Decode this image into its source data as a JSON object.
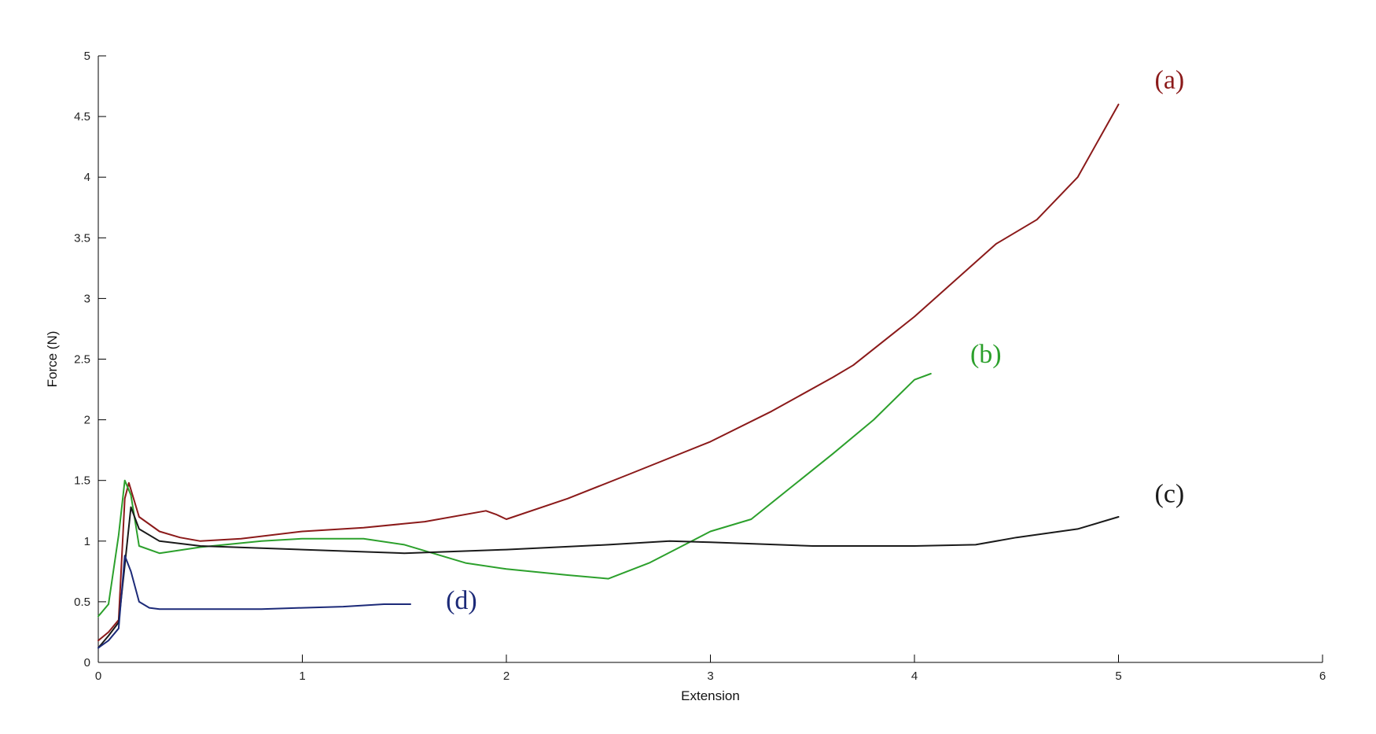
{
  "chart_data": {
    "type": "line",
    "title": "",
    "xlabel": "Extension",
    "ylabel": "Force (N)",
    "xlim": [
      0,
      6
    ],
    "ylim": [
      0,
      5
    ],
    "xticks": [
      "0",
      "1",
      "2",
      "3",
      "4",
      "5",
      "6"
    ],
    "yticks": [
      "0",
      "0.5",
      "1",
      "1.5",
      "2",
      "2.5",
      "3",
      "3.5",
      "4",
      "4.5",
      "5"
    ],
    "grid": false,
    "legend": "none",
    "series": [
      {
        "name": "(a)",
        "color": "#8b1a1a",
        "x": [
          0,
          0.05,
          0.1,
          0.13,
          0.15,
          0.2,
          0.3,
          0.4,
          0.5,
          0.7,
          1.0,
          1.3,
          1.6,
          1.9,
          1.95,
          2.0,
          2.3,
          2.6,
          3.0,
          3.3,
          3.6,
          3.7,
          4.0,
          4.2,
          4.4,
          4.6,
          4.8,
          5.0
        ],
        "y": [
          0.18,
          0.25,
          0.35,
          1.35,
          1.48,
          1.2,
          1.08,
          1.03,
          1.0,
          1.02,
          1.08,
          1.11,
          1.16,
          1.25,
          1.22,
          1.18,
          1.35,
          1.55,
          1.82,
          2.07,
          2.35,
          2.45,
          2.85,
          3.15,
          3.45,
          3.65,
          4.0,
          4.6
        ]
      },
      {
        "name": "(b)",
        "color": "#2ca02c",
        "x": [
          0,
          0.05,
          0.1,
          0.13,
          0.16,
          0.2,
          0.3,
          0.5,
          0.8,
          1.0,
          1.3,
          1.5,
          1.8,
          2.0,
          2.3,
          2.5,
          2.7,
          3.0,
          3.2,
          3.4,
          3.6,
          3.8,
          4.0,
          4.08
        ],
        "y": [
          0.38,
          0.48,
          1.05,
          1.5,
          1.38,
          0.96,
          0.9,
          0.95,
          1.0,
          1.02,
          1.02,
          0.97,
          0.82,
          0.77,
          0.72,
          0.69,
          0.82,
          1.08,
          1.18,
          1.45,
          1.72,
          2.0,
          2.33,
          2.38
        ]
      },
      {
        "name": "(c)",
        "color": "#1a1a1a",
        "x": [
          0,
          0.05,
          0.1,
          0.13,
          0.16,
          0.2,
          0.3,
          0.5,
          1.0,
          1.5,
          2.0,
          2.5,
          2.8,
          3.0,
          3.5,
          4.0,
          4.3,
          4.5,
          4.8,
          5.0
        ],
        "y": [
          0.12,
          0.22,
          0.33,
          0.8,
          1.28,
          1.1,
          1.0,
          0.96,
          0.93,
          0.9,
          0.93,
          0.97,
          1.0,
          0.99,
          0.96,
          0.96,
          0.97,
          1.03,
          1.1,
          1.2
        ]
      },
      {
        "name": "(d)",
        "color": "#1c2a78",
        "x": [
          0,
          0.05,
          0.1,
          0.13,
          0.16,
          0.2,
          0.25,
          0.3,
          0.5,
          0.8,
          1.0,
          1.2,
          1.4,
          1.53
        ],
        "y": [
          0.12,
          0.18,
          0.28,
          0.88,
          0.75,
          0.5,
          0.45,
          0.44,
          0.44,
          0.44,
          0.45,
          0.46,
          0.48,
          0.48
        ]
      }
    ],
    "annotations": [
      {
        "text": "(a)",
        "x": 5.25,
        "y": 4.73,
        "color": "#8b1a1a"
      },
      {
        "text": "(b)",
        "x": 4.35,
        "y": 2.47,
        "color": "#2ca02c"
      },
      {
        "text": "(c)",
        "x": 5.25,
        "y": 1.32,
        "color": "#1a1a1a"
      },
      {
        "text": "(d)",
        "x": 1.78,
        "y": 0.44,
        "color": "#1c2a78"
      }
    ]
  }
}
